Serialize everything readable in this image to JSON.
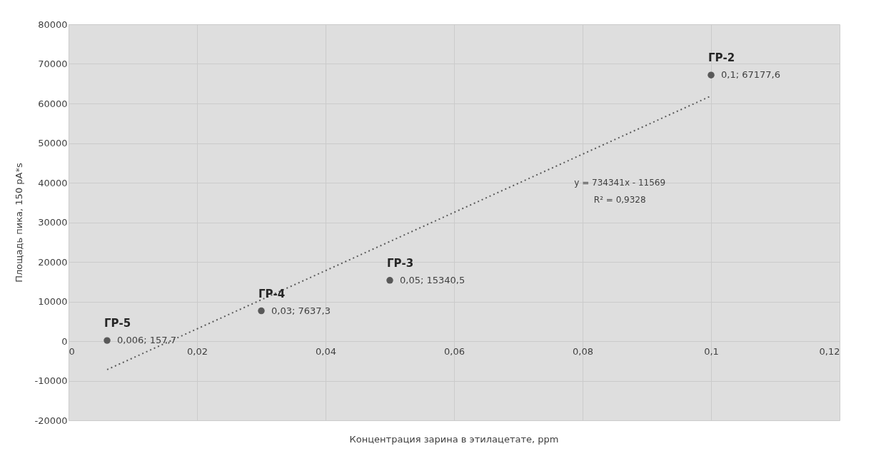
{
  "chart_data": {
    "type": "scatter",
    "xlabel": "Концентрация зарина в этилацетате, ppm",
    "ylabel": "Площадь пика, 150 pA*s",
    "xlim": [
      0,
      0.12
    ],
    "xticks": [
      0,
      {
        "value": 0.02,
        "label": "0,02"
      },
      {
        "value": 0.04,
        "label": "0,04"
      },
      {
        "value": 0.06,
        "label": "0,06"
      },
      {
        "value": 0.08,
        "label": "0,08"
      },
      {
        "value": 0.1,
        "label": "0,1"
      },
      {
        "value": 0.12,
        "label": "0,12"
      }
    ],
    "ylim": [
      -20000,
      80000
    ],
    "yticks": [
      -20000,
      -10000,
      0,
      10000,
      20000,
      30000,
      40000,
      50000,
      60000,
      70000,
      80000
    ],
    "grid": true,
    "series": [
      {
        "color": "#595959",
        "marker": "circle",
        "x": [
          0.006,
          0.03,
          0.05,
          0.1
        ],
        "values": [
          157.7,
          7637.3,
          15340.5,
          67177.6
        ],
        "value_labels": [
          "0,006; 157,7",
          "0,03; 7637,3",
          "0,05; 15340,5",
          "0,1; 67177,6"
        ]
      },
      {
        "type": "line",
        "color": "#595959",
        "line_style": "dotted",
        "x": [
          0.006,
          0.1
        ],
        "values": [
          -7200,
          61900
        ]
      }
    ],
    "annotations": [
      {
        "text": "ГР-5",
        "x": 0.006,
        "y": 157.7
      },
      {
        "text": "ГР-4",
        "x": 0.03,
        "y": 7637.3
      },
      {
        "text": "ГР-3",
        "x": 0.05,
        "y": 15340.5
      },
      {
        "text": "ГР-2",
        "x": 0.1,
        "y": 67177.6
      },
      "y = 734341x - 11569",
      "R² = 0,9328"
    ]
  }
}
